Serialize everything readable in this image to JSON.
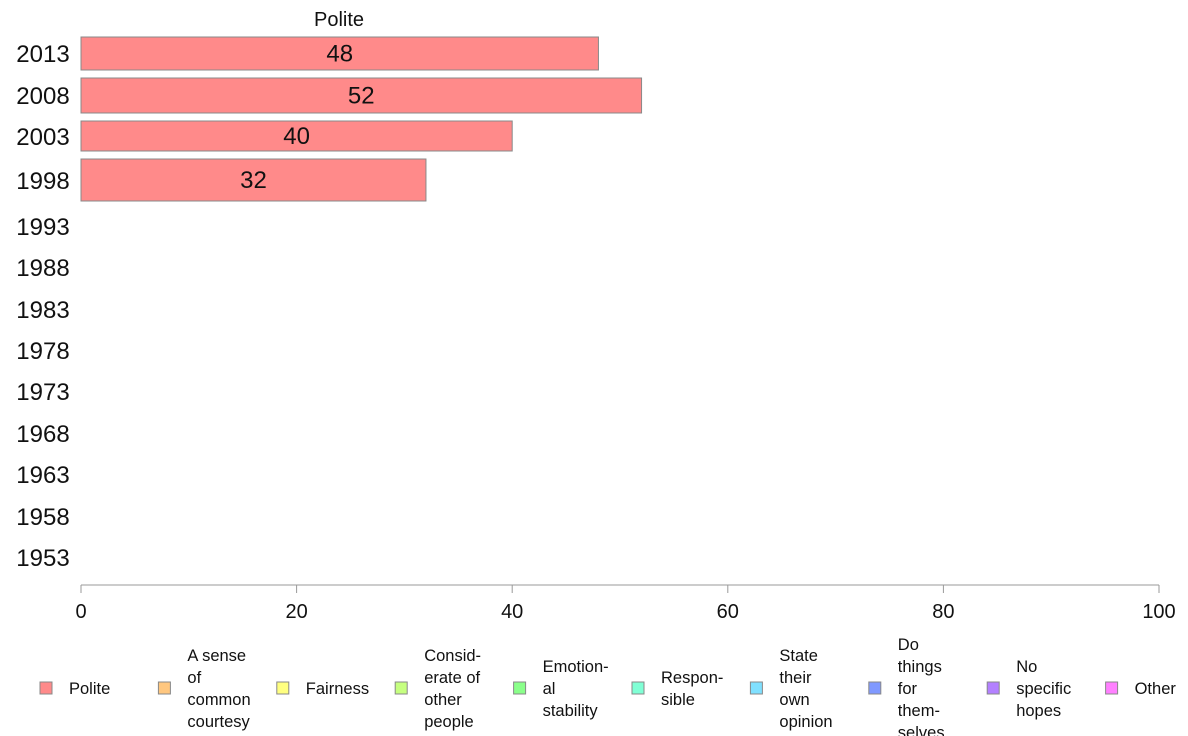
{
  "chart_data": {
    "type": "bar",
    "orientation": "horizontal",
    "title": "Polite",
    "categories": [
      "2013",
      "2008",
      "2003",
      "1998",
      "1993",
      "1988",
      "1983",
      "1978",
      "1973",
      "1968",
      "1963",
      "1958",
      "1953"
    ],
    "series": [
      {
        "name": "Polite",
        "values": [
          48,
          52,
          40,
          32,
          null,
          null,
          null,
          null,
          null,
          null,
          null,
          null,
          null
        ]
      }
    ],
    "xlim": [
      0,
      100
    ],
    "xticks": [
      "0",
      "20",
      "40",
      "60",
      "80",
      "100"
    ],
    "grid": false,
    "legend": {
      "placement": "bottom",
      "entries": [
        {
          "lines": [
            "Polite"
          ],
          "color": "#ff8a8a"
        },
        {
          "lines": [
            "A sense",
            "of",
            "common",
            "courtesy"
          ],
          "color": "#ffc77f"
        },
        {
          "lines": [
            "Fairness"
          ],
          "color": "#ffff80"
        },
        {
          "lines": [
            "Consid-",
            "erate of",
            "other",
            "people"
          ],
          "color": "#c6ff80"
        },
        {
          "lines": [
            "Emotion-",
            "al",
            "stability"
          ],
          "color": "#8aff8a"
        },
        {
          "lines": [
            "Respon-",
            "sible"
          ],
          "color": "#80ffd5"
        },
        {
          "lines": [
            "State",
            "their",
            "own",
            "opinion"
          ],
          "color": "#80e0ff"
        },
        {
          "lines": [
            "Do",
            "things",
            "for",
            "them-",
            "selves"
          ],
          "color": "#8099ff"
        },
        {
          "lines": [
            "No",
            "specific",
            "hopes"
          ],
          "color": "#b380ff"
        },
        {
          "lines": [
            "Other"
          ],
          "color": "#ff80ff"
        }
      ]
    },
    "colors": {
      "bar": "#ff8a8a",
      "bar_stroke": "#888888",
      "axis": "#999999"
    }
  }
}
